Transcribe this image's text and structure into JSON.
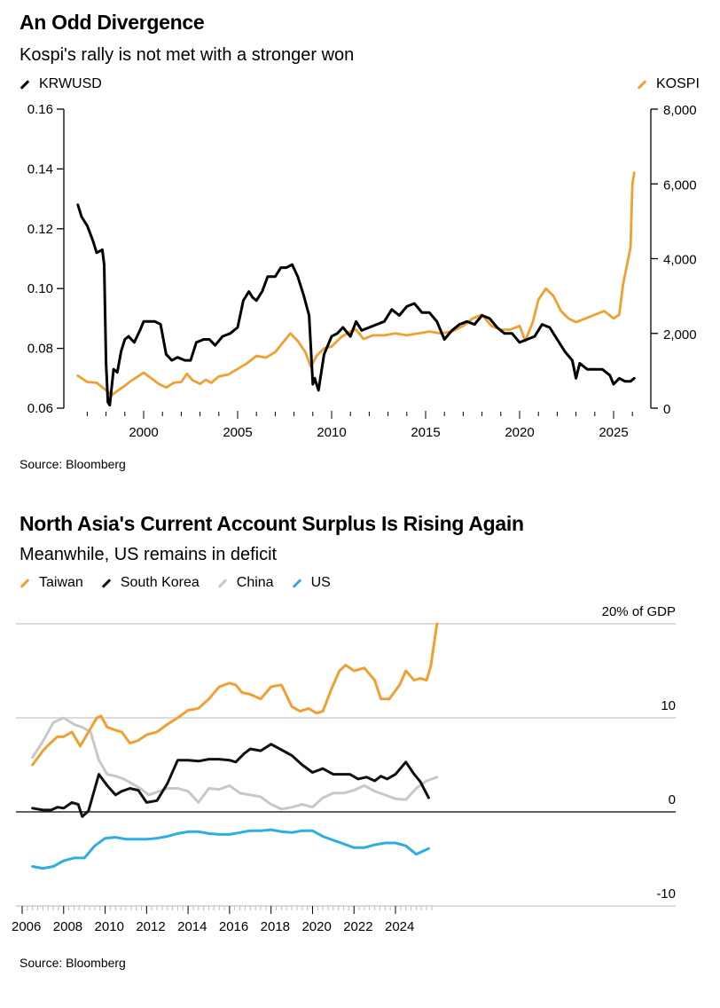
{
  "chart_data": [
    {
      "type": "line",
      "title": "An Odd Divergence",
      "subtitle": "Kospi's rally is not met with a stronger won",
      "source": "Source: Bloomberg",
      "legend_position": "top",
      "xlabel": "",
      "x_ticks": [
        "2000",
        "2005",
        "2010",
        "2015",
        "2020",
        "2025"
      ],
      "x_tick_values": [
        2000,
        2005,
        2010,
        2015,
        2020,
        2025
      ],
      "x_range": [
        1996.2,
        2026.5
      ],
      "left_axis": {
        "label": "KRWUSD",
        "ylim": [
          0.06,
          0.16
        ],
        "ticks": [
          "0.06",
          "0.08",
          "0.10",
          "0.12",
          "0.14",
          "0.16"
        ],
        "tick_values": [
          0.06,
          0.08,
          0.1,
          0.12,
          0.14,
          0.16
        ]
      },
      "right_axis": {
        "label": "KOSPI",
        "ylim": [
          0,
          8000
        ],
        "ticks": [
          "0",
          "2,000",
          "4,000",
          "6,000",
          "8,000"
        ],
        "tick_values": [
          0,
          2000,
          4000,
          6000,
          8000
        ]
      },
      "series": [
        {
          "name": "KRWUSD",
          "axis": "left",
          "color": "#000000",
          "x": [
            1996.5,
            1996.7,
            1997.0,
            1997.3,
            1997.5,
            1997.8,
            1997.9,
            1998.0,
            1998.1,
            1998.2,
            1998.4,
            1998.6,
            1998.8,
            1999.0,
            1999.2,
            1999.5,
            1999.8,
            2000.0,
            2000.3,
            2000.6,
            2000.9,
            2001.2,
            2001.5,
            2001.8,
            2002.2,
            2002.5,
            2002.8,
            2003.2,
            2003.5,
            2003.8,
            2004.2,
            2004.6,
            2005.0,
            2005.3,
            2005.6,
            2005.8,
            2006.0,
            2006.3,
            2006.6,
            2007.0,
            2007.3,
            2007.6,
            2007.9,
            2008.2,
            2008.5,
            2008.8,
            2009.0,
            2009.1,
            2009.3,
            2009.6,
            2010.0,
            2010.3,
            2010.6,
            2011.0,
            2011.3,
            2011.6,
            2012.0,
            2012.4,
            2012.8,
            2013.2,
            2013.6,
            2014.0,
            2014.4,
            2014.8,
            2015.2,
            2015.6,
            2016.0,
            2016.4,
            2016.8,
            2017.2,
            2017.6,
            2018.0,
            2018.4,
            2018.8,
            2019.2,
            2019.6,
            2020.0,
            2020.4,
            2020.8,
            2021.2,
            2021.6,
            2022.0,
            2022.4,
            2022.8,
            2023.0,
            2023.2,
            2023.6,
            2024.0,
            2024.4,
            2024.8,
            2025.0,
            2025.3,
            2025.6,
            2025.9,
            2026.1
          ],
          "y": [
            0.128,
            0.124,
            0.121,
            0.116,
            0.112,
            0.113,
            0.108,
            0.075,
            0.062,
            0.061,
            0.073,
            0.072,
            0.079,
            0.083,
            0.084,
            0.082,
            0.086,
            0.089,
            0.089,
            0.089,
            0.088,
            0.078,
            0.076,
            0.077,
            0.076,
            0.076,
            0.082,
            0.083,
            0.083,
            0.081,
            0.084,
            0.085,
            0.087,
            0.096,
            0.099,
            0.097,
            0.096,
            0.099,
            0.104,
            0.104,
            0.107,
            0.107,
            0.108,
            0.104,
            0.098,
            0.091,
            0.068,
            0.07,
            0.066,
            0.078,
            0.084,
            0.085,
            0.087,
            0.084,
            0.089,
            0.086,
            0.087,
            0.088,
            0.089,
            0.093,
            0.091,
            0.094,
            0.095,
            0.092,
            0.092,
            0.089,
            0.083,
            0.086,
            0.088,
            0.089,
            0.088,
            0.091,
            0.09,
            0.087,
            0.085,
            0.085,
            0.082,
            0.083,
            0.084,
            0.088,
            0.087,
            0.083,
            0.079,
            0.076,
            0.07,
            0.075,
            0.073,
            0.073,
            0.073,
            0.071,
            0.068,
            0.07,
            0.069,
            0.069,
            0.07
          ]
        },
        {
          "name": "KOSPI",
          "axis": "right",
          "color": "#F0A030",
          "x": [
            1996.5,
            1997.0,
            1997.5,
            1998.0,
            1998.3,
            1998.6,
            1999.0,
            1999.3,
            1999.7,
            2000.0,
            2000.4,
            2000.8,
            2001.2,
            2001.6,
            2002.0,
            2002.3,
            2002.6,
            2003.0,
            2003.3,
            2003.6,
            2004.0,
            2004.5,
            2005.0,
            2005.5,
            2006.0,
            2006.5,
            2007.0,
            2007.4,
            2007.8,
            2008.2,
            2008.6,
            2008.9,
            2009.2,
            2009.6,
            2010.0,
            2010.5,
            2011.0,
            2011.3,
            2011.7,
            2012.2,
            2012.8,
            2013.4,
            2014.0,
            2014.6,
            2015.2,
            2015.8,
            2016.4,
            2017.0,
            2017.5,
            2018.0,
            2018.5,
            2019.0,
            2019.5,
            2020.0,
            2020.3,
            2020.7,
            2021.0,
            2021.4,
            2021.8,
            2022.2,
            2022.6,
            2023.0,
            2023.5,
            2024.0,
            2024.5,
            2025.0,
            2025.3,
            2025.5,
            2025.7,
            2025.9,
            2026.0,
            2026.1
          ],
          "y": [
            870,
            700,
            680,
            480,
            350,
            460,
            600,
            720,
            850,
            950,
            800,
            650,
            550,
            680,
            700,
            920,
            750,
            650,
            760,
            680,
            850,
            900,
            1050,
            1200,
            1400,
            1350,
            1500,
            1750,
            2000,
            1800,
            1500,
            1100,
            1400,
            1600,
            1650,
            1900,
            2050,
            2100,
            1850,
            1950,
            1950,
            2000,
            1950,
            2000,
            2050,
            2000,
            2050,
            2200,
            2400,
            2500,
            2200,
            2100,
            2100,
            2200,
            1800,
            2300,
            2900,
            3200,
            3000,
            2600,
            2400,
            2300,
            2400,
            2500,
            2600,
            2400,
            2500,
            3300,
            3800,
            4300,
            6000,
            6300
          ]
        }
      ]
    },
    {
      "type": "line",
      "title": "North Asia's Current Account Surplus Is Rising Again",
      "subtitle": "Meanwhile, US remains in deficit",
      "source": "Source: Bloomberg",
      "legend_position": "top",
      "xlabel": "",
      "ylabel": "% of GDP",
      "x_ticks": [
        "2006",
        "2008",
        "2010",
        "2012",
        "2014",
        "2016",
        "2018",
        "2020",
        "2022",
        "2024"
      ],
      "x_tick_values": [
        2006,
        2008,
        2010,
        2012,
        2014,
        2016,
        2018,
        2020,
        2022,
        2024
      ],
      "x_range": [
        2005.5,
        2027.3
      ],
      "ylim": [
        -10,
        20
      ],
      "y_ticks": [
        "-10",
        "0",
        "10",
        "20% of GDP"
      ],
      "y_tick_values": [
        -10,
        0,
        10,
        20
      ],
      "grid": true,
      "series": [
        {
          "name": "Taiwan",
          "color": "#F0A030",
          "x": [
            2006.5,
            2007.0,
            2007.3,
            2007.7,
            2008.0,
            2008.4,
            2008.8,
            2009.2,
            2009.6,
            2009.8,
            2010.1,
            2010.5,
            2010.8,
            2011.2,
            2011.6,
            2012.0,
            2012.5,
            2013.0,
            2013.5,
            2014.0,
            2014.5,
            2015.0,
            2015.5,
            2016.0,
            2016.3,
            2016.6,
            2017.0,
            2017.5,
            2018.0,
            2018.5,
            2019.0,
            2019.4,
            2019.8,
            2020.2,
            2020.5,
            2020.9,
            2021.3,
            2021.6,
            2022.0,
            2022.5,
            2023.0,
            2023.3,
            2023.7,
            2024.2,
            2024.5,
            2024.9,
            2025.2,
            2025.5,
            2025.7,
            2026.0
          ],
          "y": [
            5.0,
            6.5,
            7.2,
            8.0,
            8.0,
            8.5,
            7.0,
            8.5,
            10.0,
            10.2,
            9.0,
            8.7,
            8.5,
            7.3,
            7.6,
            8.2,
            8.5,
            9.3,
            10.0,
            10.8,
            11.0,
            12.0,
            13.3,
            13.7,
            13.5,
            12.7,
            12.5,
            12.0,
            13.3,
            13.5,
            11.2,
            10.7,
            11.0,
            10.5,
            10.7,
            13.0,
            15.0,
            15.6,
            15.0,
            15.3,
            14.0,
            12.0,
            12.0,
            13.5,
            15.0,
            14.0,
            14.2,
            14.0,
            15.5,
            20.0
          ]
        },
        {
          "name": "South Korea",
          "color": "#111111",
          "x": [
            2006.5,
            2007.0,
            2007.4,
            2007.7,
            2008.0,
            2008.4,
            2008.7,
            2008.9,
            2009.2,
            2009.7,
            2010.1,
            2010.5,
            2010.8,
            2011.2,
            2011.6,
            2012.0,
            2012.5,
            2013.0,
            2013.5,
            2014.0,
            2014.5,
            2015.0,
            2015.5,
            2016.0,
            2016.3,
            2016.7,
            2017.0,
            2017.5,
            2018.0,
            2018.5,
            2019.0,
            2019.5,
            2020.0,
            2020.5,
            2021.0,
            2021.4,
            2021.8,
            2022.2,
            2022.6,
            2023.0,
            2023.3,
            2023.6,
            2024.0,
            2024.5,
            2024.9,
            2025.2,
            2025.6
          ],
          "y": [
            0.4,
            0.2,
            0.2,
            0.5,
            0.4,
            1.0,
            0.8,
            -0.5,
            0.1,
            4.0,
            2.8,
            1.8,
            2.2,
            2.5,
            2.3,
            1.0,
            1.2,
            3.0,
            5.5,
            5.5,
            5.4,
            5.6,
            5.6,
            5.5,
            5.3,
            6.2,
            6.7,
            6.5,
            7.2,
            6.6,
            6.0,
            5.0,
            4.2,
            4.6,
            4.0,
            4.0,
            4.0,
            3.5,
            3.7,
            3.3,
            3.8,
            3.5,
            4.0,
            5.3,
            4.0,
            3.2,
            1.5
          ]
        },
        {
          "name": "China",
          "color": "#C8C8C8",
          "x": [
            2006.5,
            2007.0,
            2007.5,
            2008.0,
            2008.5,
            2008.9,
            2009.3,
            2009.7,
            2010.1,
            2010.5,
            2010.9,
            2011.3,
            2011.7,
            2012.1,
            2012.5,
            2013.0,
            2013.5,
            2014.0,
            2014.5,
            2015.0,
            2015.5,
            2016.0,
            2016.5,
            2017.0,
            2017.5,
            2018.0,
            2018.5,
            2019.0,
            2019.5,
            2020.0,
            2020.5,
            2021.0,
            2021.5,
            2022.0,
            2022.5,
            2023.0,
            2023.5,
            2024.0,
            2024.5,
            2025.0,
            2025.5,
            2026.0
          ],
          "y": [
            5.8,
            7.5,
            9.5,
            10.0,
            9.3,
            9.0,
            8.5,
            5.5,
            4.0,
            3.8,
            3.5,
            3.0,
            2.5,
            1.8,
            2.1,
            2.5,
            2.5,
            2.2,
            1.0,
            2.5,
            2.4,
            2.8,
            2.0,
            1.8,
            1.6,
            0.8,
            0.3,
            0.5,
            0.8,
            0.5,
            1.5,
            2.0,
            2.0,
            2.3,
            2.8,
            2.2,
            1.8,
            1.4,
            1.3,
            2.5,
            3.3,
            3.7
          ]
        },
        {
          "name": "US",
          "color": "#2EAEE0",
          "x": [
            2006.5,
            2007.0,
            2007.5,
            2008.0,
            2008.5,
            2009.0,
            2009.5,
            2010.0,
            2010.5,
            2011.0,
            2011.5,
            2012.0,
            2012.5,
            2013.0,
            2013.5,
            2014.0,
            2014.5,
            2015.0,
            2015.5,
            2016.0,
            2016.5,
            2017.0,
            2017.5,
            2018.0,
            2018.5,
            2019.0,
            2019.5,
            2020.0,
            2020.5,
            2021.0,
            2021.5,
            2022.0,
            2022.5,
            2023.0,
            2023.5,
            2024.0,
            2024.5,
            2025.0,
            2025.3,
            2025.6
          ],
          "y": [
            -5.8,
            -6.0,
            -5.8,
            -5.2,
            -4.9,
            -4.9,
            -3.6,
            -2.8,
            -2.7,
            -2.9,
            -2.9,
            -2.9,
            -2.8,
            -2.6,
            -2.3,
            -2.1,
            -2.1,
            -2.3,
            -2.4,
            -2.4,
            -2.2,
            -2.0,
            -2.0,
            -1.9,
            -2.1,
            -2.2,
            -2.0,
            -2.0,
            -2.6,
            -3.0,
            -3.4,
            -3.8,
            -3.8,
            -3.5,
            -3.3,
            -3.3,
            -3.6,
            -4.5,
            -4.2,
            -3.9
          ]
        }
      ]
    }
  ]
}
